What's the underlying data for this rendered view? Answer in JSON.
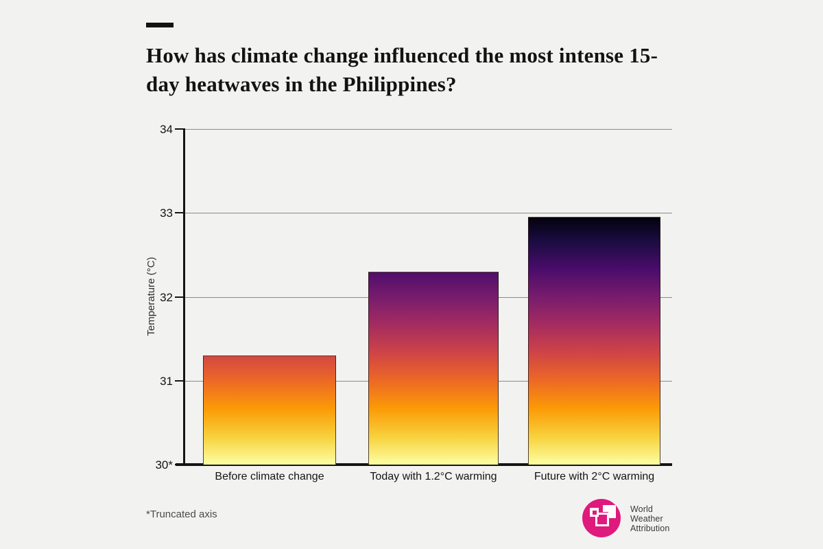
{
  "header": {
    "title": "How has climate change influenced the most intense 15-day heatwaves in the Philippines?"
  },
  "footer": {
    "footnote": "*Truncated axis",
    "logo": {
      "name": "World Weather Attribution",
      "lines": [
        "World",
        "Weather",
        "Attribution"
      ],
      "brand_color": "#e0197d",
      "text_color": "#3a3a3a"
    }
  },
  "chart_data": {
    "type": "bar",
    "title": "How has climate change influenced the most intense 15-day heatwaves in the Philippines?",
    "xlabel": "",
    "ylabel": "Temperature (°C)",
    "ylim": [
      30,
      34
    ],
    "yticks": [
      {
        "value": 34,
        "label": "34"
      },
      {
        "value": 33,
        "label": "33"
      },
      {
        "value": 32,
        "label": "32"
      },
      {
        "value": 31,
        "label": "31"
      },
      {
        "value": 30,
        "label": "30*"
      }
    ],
    "categories": [
      "Before climate change",
      "Today with 1.2°C warming",
      "Future with 2°C warming"
    ],
    "values": [
      31.3,
      32.3,
      32.95
    ],
    "grid": true,
    "legend": "none",
    "annotation": "*Truncated axis (y-axis starts at 30°C)",
    "bar_gradient": {
      "description": "vertical gradient, inferno colormap reversed: pale yellow at 30°C rising to black at 33°C; each bar colored by temperature",
      "anchors": [
        {
          "t": 30.0,
          "color": "#fcffa4"
        },
        {
          "t": 30.333,
          "color": "#f7d13d"
        },
        {
          "t": 30.667,
          "color": "#fb9b06"
        },
        {
          "t": 31.0,
          "color": "#ed6925"
        },
        {
          "t": 31.333,
          "color": "#cf4446"
        },
        {
          "t": 31.667,
          "color": "#a52c60"
        },
        {
          "t": 32.0,
          "color": "#781c6d"
        },
        {
          "t": 32.333,
          "color": "#4a0c6b"
        },
        {
          "t": 32.667,
          "color": "#1b0c41"
        },
        {
          "t": 33.0,
          "color": "#000004"
        }
      ]
    },
    "axis_color": "#141414",
    "gridline_color": "#8a8a8a",
    "background_color": "#f2f2f1"
  }
}
